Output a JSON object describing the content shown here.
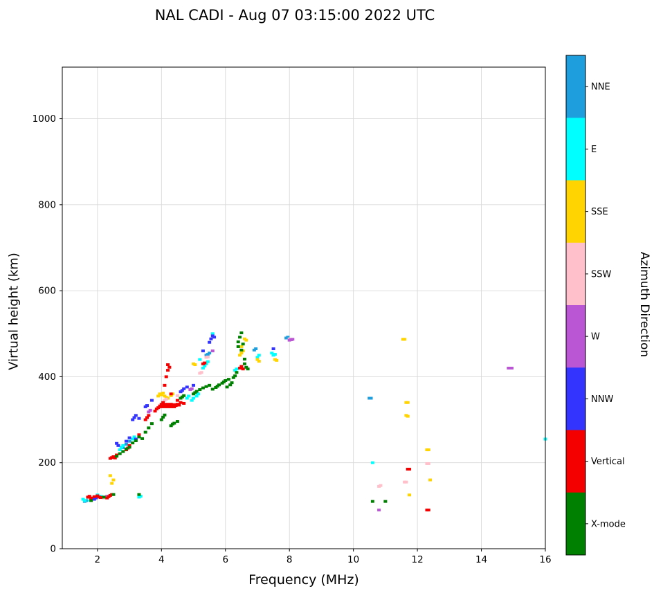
{
  "title": "NAL CADI - Aug 07 03:15:00 2022 UTC",
  "chart_data": {
    "type": "scatter",
    "title": "NAL CADI - Aug 07 03:15:00 2022 UTC",
    "xlabel": "Frequency (MHz)",
    "ylabel": "Virtual height (km)",
    "colorbar_label": "Azimuth Direction",
    "xlim": [
      0.9,
      16.0
    ],
    "ylim": [
      0,
      1120
    ],
    "x_ticks": [
      2,
      4,
      6,
      8,
      10,
      12,
      14,
      16
    ],
    "y_ticks": [
      0,
      200,
      400,
      600,
      800,
      1000
    ],
    "grid": true,
    "grid_color": "#d9d9d9",
    "legend_position": "right-colorbar",
    "legend": [
      {
        "label": "NNE",
        "color": "#1f9ede"
      },
      {
        "label": "E",
        "color": "#00ffff"
      },
      {
        "label": "SSE",
        "color": "#ffd400"
      },
      {
        "label": "SSW",
        "color": "#ffc0cb"
      },
      {
        "label": "W",
        "color": "#ba55d3"
      },
      {
        "label": "NNW",
        "color": "#3434ff"
      },
      {
        "label": "Vertical",
        "color": "#f40000"
      },
      {
        "label": "X-mode",
        "color": "#008000"
      }
    ],
    "series": [
      {
        "name": "NNE",
        "color": "#1f9ede",
        "points": [
          [
            1.6,
            110
          ],
          [
            1.65,
            112
          ],
          [
            2.8,
            235
          ],
          [
            2.9,
            243
          ],
          [
            3.0,
            250
          ],
          [
            5.4,
            450
          ],
          [
            5.45,
            452
          ],
          [
            5.5,
            455
          ],
          [
            6.9,
            462
          ],
          [
            6.95,
            465
          ],
          [
            7.9,
            490
          ],
          [
            7.95,
            492
          ],
          [
            10.5,
            350
          ],
          [
            10.55,
            350
          ]
        ]
      },
      {
        "name": "E",
        "color": "#00ffff",
        "points": [
          [
            1.55,
            115
          ],
          [
            1.6,
            112
          ],
          [
            1.7,
            118
          ],
          [
            1.75,
            113
          ],
          [
            2.0,
            125
          ],
          [
            2.1,
            122
          ],
          [
            3.3,
            120
          ],
          [
            3.35,
            122
          ],
          [
            2.7,
            230
          ],
          [
            2.75,
            236
          ],
          [
            2.8,
            240
          ],
          [
            3.1,
            255
          ],
          [
            3.15,
            260
          ],
          [
            4.8,
            350
          ],
          [
            4.85,
            355
          ],
          [
            4.95,
            345
          ],
          [
            5.0,
            350
          ],
          [
            5.1,
            355
          ],
          [
            5.15,
            360
          ],
          [
            5.2,
            440
          ],
          [
            5.3,
            420
          ],
          [
            5.35,
            425
          ],
          [
            5.4,
            430
          ],
          [
            5.45,
            435
          ],
          [
            5.6,
            500
          ],
          [
            6.3,
            415
          ],
          [
            6.35,
            418
          ],
          [
            7.0,
            445
          ],
          [
            7.05,
            450
          ],
          [
            7.45,
            455
          ],
          [
            7.5,
            450
          ],
          [
            7.55,
            452
          ],
          [
            10.6,
            200
          ],
          [
            16.0,
            255
          ]
        ]
      },
      {
        "name": "SSE",
        "color": "#ffd400",
        "points": [
          [
            2.4,
            170
          ],
          [
            2.45,
            152
          ],
          [
            2.5,
            160
          ],
          [
            3.9,
            355
          ],
          [
            3.95,
            360
          ],
          [
            4.0,
            358
          ],
          [
            4.05,
            362
          ],
          [
            4.1,
            355
          ],
          [
            4.15,
            352
          ],
          [
            4.2,
            350
          ],
          [
            4.3,
            356
          ],
          [
            4.35,
            360
          ],
          [
            5.0,
            430
          ],
          [
            5.05,
            428
          ],
          [
            6.45,
            450
          ],
          [
            6.5,
            455
          ],
          [
            6.55,
            460
          ],
          [
            6.6,
            488
          ],
          [
            6.65,
            485
          ],
          [
            6.5,
            470
          ],
          [
            7.0,
            440
          ],
          [
            7.05,
            436
          ],
          [
            7.55,
            440
          ],
          [
            7.6,
            438
          ],
          [
            11.55,
            487
          ],
          [
            11.6,
            487
          ],
          [
            11.65,
            340
          ],
          [
            11.7,
            340
          ],
          [
            11.65,
            310
          ],
          [
            11.7,
            308
          ],
          [
            11.75,
            125
          ],
          [
            12.3,
            230
          ],
          [
            12.35,
            230
          ],
          [
            12.4,
            160
          ]
        ]
      },
      {
        "name": "SSW",
        "color": "#ffc0cb",
        "points": [
          [
            1.75,
            116
          ],
          [
            2.2,
            118
          ],
          [
            2.25,
            120
          ],
          [
            4.1,
            345
          ],
          [
            4.15,
            348
          ],
          [
            4.5,
            356
          ],
          [
            5.2,
            408
          ],
          [
            5.25,
            410
          ],
          [
            5.4,
            445
          ],
          [
            5.45,
            446
          ],
          [
            8.0,
            488
          ],
          [
            10.8,
            145
          ],
          [
            10.85,
            147
          ],
          [
            11.6,
            155
          ],
          [
            11.65,
            155
          ],
          [
            12.3,
            198
          ],
          [
            12.35,
            198
          ]
        ]
      },
      {
        "name": "W",
        "color": "#ba55d3",
        "points": [
          [
            2.3,
            122
          ],
          [
            3.6,
            318
          ],
          [
            3.65,
            322
          ],
          [
            4.9,
            370
          ],
          [
            4.95,
            372
          ],
          [
            5.6,
            460
          ],
          [
            8.0,
            485
          ],
          [
            8.05,
            486
          ],
          [
            8.1,
            487
          ],
          [
            10.8,
            90
          ],
          [
            14.85,
            420
          ],
          [
            14.9,
            420
          ],
          [
            14.95,
            420
          ]
        ]
      },
      {
        "name": "NNW",
        "color": "#3434ff",
        "points": [
          [
            1.9,
            115
          ],
          [
            1.95,
            118
          ],
          [
            2.6,
            245
          ],
          [
            2.65,
            240
          ],
          [
            2.9,
            250
          ],
          [
            3.0,
            258
          ],
          [
            3.1,
            300
          ],
          [
            3.15,
            305
          ],
          [
            3.2,
            310
          ],
          [
            3.2,
            255
          ],
          [
            3.3,
            303
          ],
          [
            3.5,
            330
          ],
          [
            3.55,
            333
          ],
          [
            3.7,
            345
          ],
          [
            4.6,
            365
          ],
          [
            4.65,
            368
          ],
          [
            4.7,
            372
          ],
          [
            4.8,
            376
          ],
          [
            5.0,
            380
          ],
          [
            5.3,
            460
          ],
          [
            5.5,
            480
          ],
          [
            5.55,
            488
          ],
          [
            5.6,
            495
          ],
          [
            5.65,
            492
          ],
          [
            7.5,
            465
          ]
        ]
      },
      {
        "name": "Vertical",
        "color": "#f40000",
        "points": [
          [
            1.7,
            120
          ],
          [
            1.75,
            122
          ],
          [
            1.8,
            118
          ],
          [
            1.9,
            121
          ],
          [
            2.0,
            123
          ],
          [
            2.05,
            120
          ],
          [
            2.1,
            119
          ],
          [
            2.3,
            118
          ],
          [
            2.35,
            121
          ],
          [
            2.4,
            124
          ],
          [
            2.45,
            126
          ],
          [
            2.4,
            210
          ],
          [
            2.45,
            212
          ],
          [
            2.5,
            214
          ],
          [
            2.55,
            211
          ],
          [
            2.6,
            218
          ],
          [
            2.9,
            230
          ],
          [
            2.95,
            234
          ],
          [
            3.0,
            240
          ],
          [
            3.3,
            265
          ],
          [
            3.5,
            300
          ],
          [
            3.55,
            305
          ],
          [
            3.6,
            310
          ],
          [
            3.8,
            320
          ],
          [
            3.85,
            325
          ],
          [
            3.9,
            328
          ],
          [
            3.95,
            332
          ],
          [
            4.0,
            330
          ],
          [
            4.0,
            336
          ],
          [
            4.05,
            333
          ],
          [
            4.05,
            340
          ],
          [
            4.1,
            330
          ],
          [
            4.1,
            336
          ],
          [
            4.15,
            332
          ],
          [
            4.2,
            330
          ],
          [
            4.2,
            336
          ],
          [
            4.25,
            333
          ],
          [
            4.3,
            330
          ],
          [
            4.3,
            336
          ],
          [
            4.35,
            332
          ],
          [
            4.4,
            330
          ],
          [
            4.4,
            335
          ],
          [
            4.45,
            333
          ],
          [
            4.5,
            336
          ],
          [
            4.55,
            334
          ],
          [
            4.1,
            380
          ],
          [
            4.15,
            400
          ],
          [
            4.2,
            415
          ],
          [
            4.2,
            428
          ],
          [
            4.25,
            422
          ],
          [
            4.3,
            360
          ],
          [
            4.5,
            345
          ],
          [
            4.6,
            340
          ],
          [
            4.7,
            338
          ],
          [
            5.3,
            430
          ],
          [
            5.35,
            432
          ],
          [
            6.45,
            420
          ],
          [
            6.5,
            424
          ],
          [
            6.55,
            418
          ],
          [
            11.7,
            185
          ],
          [
            11.75,
            185
          ],
          [
            12.3,
            90
          ],
          [
            12.35,
            90
          ]
        ]
      },
      {
        "name": "X-mode",
        "color": "#008000",
        "points": [
          [
            1.8,
            112
          ],
          [
            2.2,
            120
          ],
          [
            2.5,
            126
          ],
          [
            3.3,
            126
          ],
          [
            2.6,
            215
          ],
          [
            2.7,
            221
          ],
          [
            2.8,
            226
          ],
          [
            2.9,
            232
          ],
          [
            3.0,
            236
          ],
          [
            3.1,
            246
          ],
          [
            3.2,
            251
          ],
          [
            3.3,
            260
          ],
          [
            3.4,
            256
          ],
          [
            3.5,
            271
          ],
          [
            3.6,
            281
          ],
          [
            3.7,
            291
          ],
          [
            4.0,
            300
          ],
          [
            4.05,
            306
          ],
          [
            4.1,
            311
          ],
          [
            4.3,
            286
          ],
          [
            4.35,
            290
          ],
          [
            4.4,
            292
          ],
          [
            4.5,
            296
          ],
          [
            4.6,
            350
          ],
          [
            4.65,
            353
          ],
          [
            4.7,
            356
          ],
          [
            5.0,
            360
          ],
          [
            5.05,
            363
          ],
          [
            5.1,
            366
          ],
          [
            5.2,
            370
          ],
          [
            5.3,
            374
          ],
          [
            5.4,
            377
          ],
          [
            5.5,
            380
          ],
          [
            5.6,
            371
          ],
          [
            5.7,
            375
          ],
          [
            5.75,
            378
          ],
          [
            5.8,
            381
          ],
          [
            5.9,
            385
          ],
          [
            5.95,
            388
          ],
          [
            6.0,
            391
          ],
          [
            6.05,
            376
          ],
          [
            6.1,
            394
          ],
          [
            6.15,
            381
          ],
          [
            6.2,
            386
          ],
          [
            6.25,
            398
          ],
          [
            6.3,
            402
          ],
          [
            6.35,
            410
          ],
          [
            6.4,
            470
          ],
          [
            6.4,
            481
          ],
          [
            6.45,
            492
          ],
          [
            6.5,
            502
          ],
          [
            6.5,
            462
          ],
          [
            6.55,
            476
          ],
          [
            6.6,
            441
          ],
          [
            6.6,
            430
          ],
          [
            6.65,
            422
          ],
          [
            6.7,
            418
          ],
          [
            10.6,
            110
          ],
          [
            11.0,
            110
          ]
        ]
      }
    ]
  }
}
